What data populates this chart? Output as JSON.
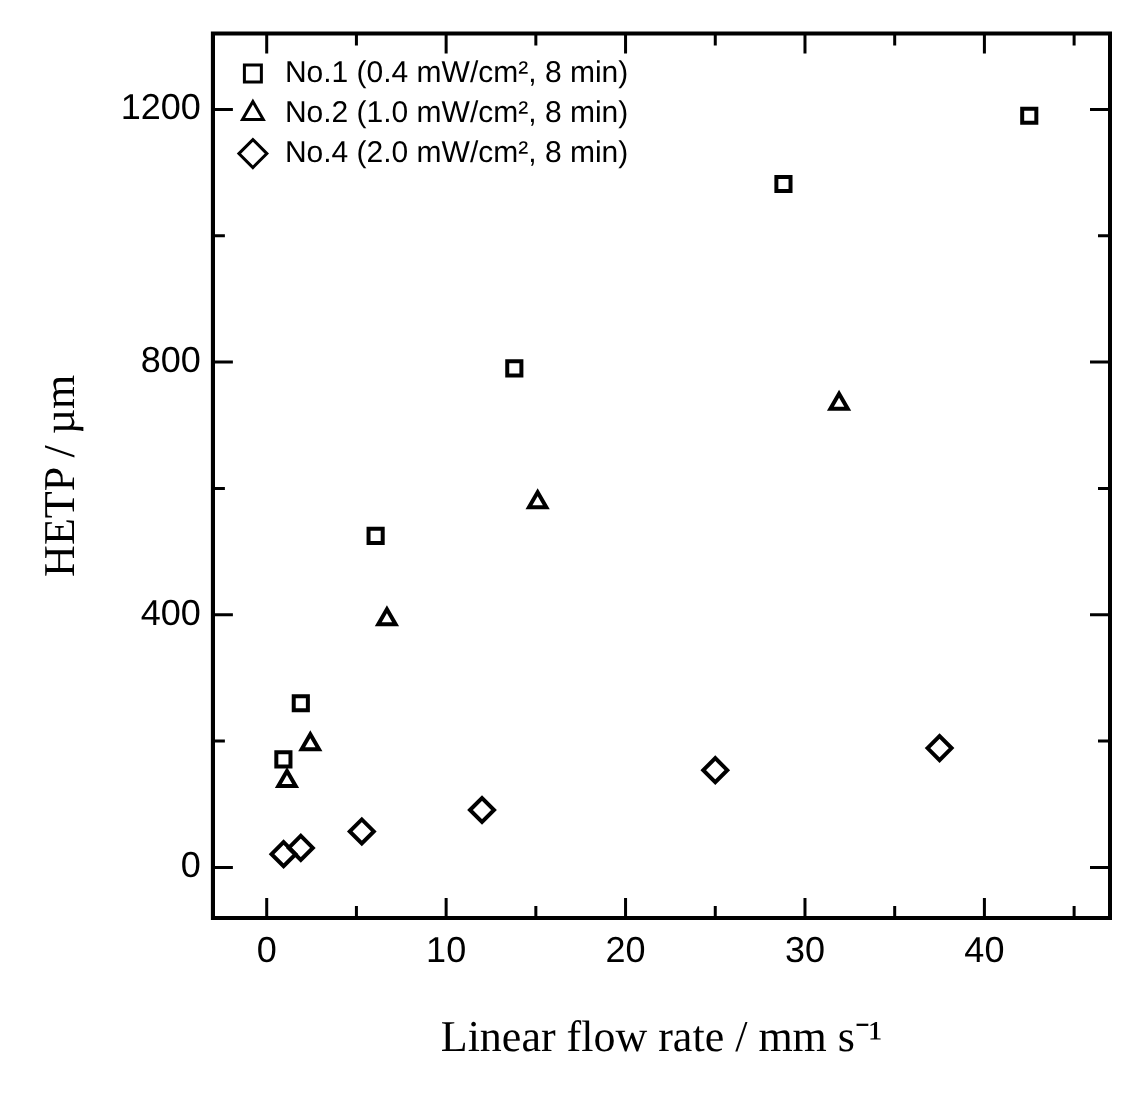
{
  "chart_data": {
    "type": "scatter",
    "xlabel": "Linear flow rate / mm s⁻¹",
    "ylabel": "HETP / µm",
    "xlim": [
      -3,
      47
    ],
    "xticks": [
      0,
      {
        "value": 5,
        "label": null
      },
      10,
      {
        "value": 15,
        "label": null
      },
      20,
      {
        "value": 25,
        "label": null
      },
      30,
      {
        "value": 35,
        "label": null
      },
      40,
      {
        "value": 45,
        "label": null
      }
    ],
    "ylim": [
      -80,
      1320
    ],
    "yticks": [
      0,
      {
        "value": 200,
        "label": null
      },
      400,
      {
        "value": 600,
        "label": null
      },
      800,
      {
        "value": 1000,
        "label": null
      },
      1200
    ],
    "legend": "top left",
    "series": [
      {
        "name": "No.1 (0.4 mW/cm², 8 min)",
        "color": "#000000",
        "marker": "square",
        "x": [
          0.93,
          1.9,
          6.07,
          13.8,
          28.8,
          42.5
        ],
        "values": [
          171,
          260,
          525,
          790,
          1082,
          1190
        ]
      },
      {
        "name": "No.2 (1.0 mW/cm², 8 min)",
        "color": "#000000",
        "marker": "triangle",
        "x": [
          1.13,
          2.43,
          6.7,
          15.1,
          31.9
        ],
        "values": [
          137,
          195,
          393,
          578,
          734
        ]
      },
      {
        "name": "No.4 (2.0 mW/cm², 8 min)",
        "color": "#000000",
        "marker": "diamond",
        "x": [
          0.94,
          1.9,
          5.3,
          12.0,
          25.0,
          37.5
        ],
        "values": [
          21,
          31,
          57,
          91,
          154,
          189
        ]
      }
    ]
  }
}
